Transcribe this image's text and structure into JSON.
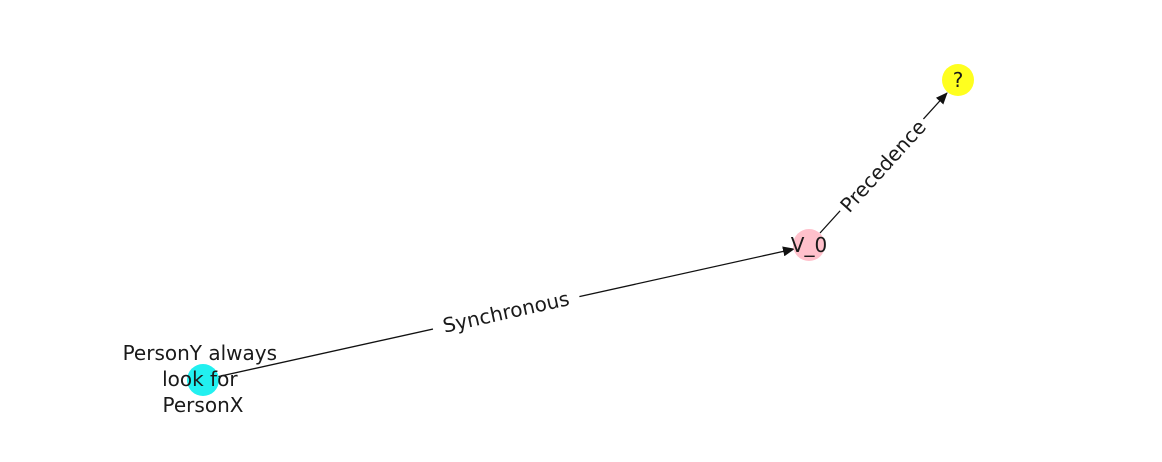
{
  "graph": {
    "nodes": [
      {
        "id": "personx",
        "label_lines": [
          "PersonY always",
          "look for",
          "PersonX"
        ],
        "color": "#22f0f0"
      },
      {
        "id": "v0",
        "label_lines": [
          "V_0"
        ],
        "color": "#ffc0cb"
      },
      {
        "id": "unknown",
        "label_lines": [
          "?"
        ],
        "color": "#ffff1f"
      }
    ],
    "edges": [
      {
        "from": "personx",
        "to": "v0",
        "label": "Synchronous"
      },
      {
        "from": "v0",
        "to": "unknown",
        "label": "Precedence"
      }
    ],
    "edge_color": "#111111"
  }
}
